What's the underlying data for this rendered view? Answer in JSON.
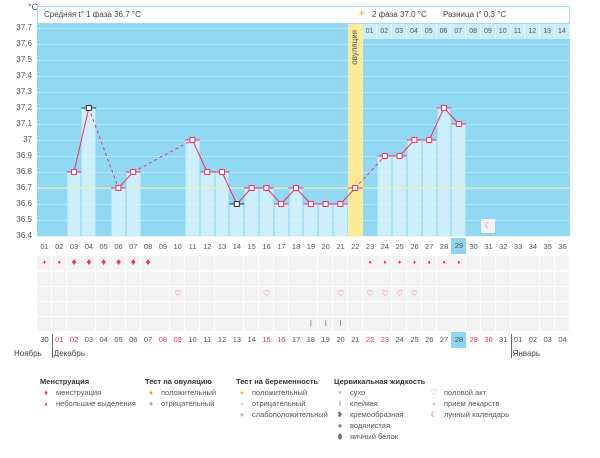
{
  "header": {
    "unit": "°C",
    "phase1": "Средняя t° 1 фаза 36.7 °C",
    "phase2": "2 фаза 37.0 °C",
    "diff": "Разница t° 0.3 °C",
    "ovulation_label": "овуляция",
    "luteal_days": [
      "01",
      "02",
      "03",
      "04",
      "05",
      "06",
      "07",
      "08",
      "09",
      "10",
      "11",
      "12",
      "13",
      "14"
    ]
  },
  "colors": {
    "plot_bg": "#91d8f3",
    "bar": "#cdeefb",
    "line": "#f0306a",
    "ovulation": "#fbeb98",
    "coverline": "#f4f0a0"
  },
  "chart_data": {
    "type": "line",
    "ylabel": "°C",
    "ylim": [
      36.4,
      37.7
    ],
    "yticks": [
      "37.7",
      "37.6",
      "37.5",
      "37.4",
      "37.3",
      "37.2",
      "37.1",
      "37",
      "36.9",
      "36.8",
      "36.7",
      "36.6",
      "36.5",
      "36.4"
    ],
    "coverline": 36.7,
    "ovulation_day": 22,
    "cycle_days": [
      "01",
      "02",
      "03",
      "04",
      "05",
      "06",
      "07",
      "08",
      "09",
      "10",
      "11",
      "12",
      "13",
      "14",
      "15",
      "16",
      "17",
      "18",
      "19",
      "20",
      "21",
      "22",
      "23",
      "24",
      "25",
      "26",
      "27",
      "28",
      "29",
      "30",
      "31",
      "32",
      "33",
      "34",
      "35",
      "36"
    ],
    "temps": [
      null,
      null,
      36.8,
      37.2,
      null,
      36.7,
      36.8,
      null,
      null,
      null,
      37.0,
      36.8,
      36.8,
      36.6,
      36.7,
      36.7,
      36.6,
      36.7,
      36.6,
      36.6,
      36.6,
      36.7,
      null,
      36.9,
      36.9,
      37.0,
      37.0,
      37.2,
      37.1,
      null,
      null,
      null,
      null,
      null,
      null,
      null
    ],
    "excluded_days": [
      4,
      14
    ],
    "current_cycle_day": 29
  },
  "rows": {
    "menstruation_big": [
      3,
      4,
      5,
      6,
      7,
      8
    ],
    "menstruation_small": [
      1,
      2,
      23,
      24,
      25,
      26,
      27,
      28,
      29
    ],
    "intercourse": [
      10,
      16,
      21,
      23,
      24,
      25,
      26
    ],
    "cervical_sticky": [
      19,
      20,
      21
    ],
    "moon": [
      31
    ]
  },
  "dates": [
    "30",
    "01",
    "02",
    "03",
    "04",
    "05",
    "06",
    "07",
    "08",
    "09",
    "10",
    "11",
    "12",
    "13",
    "14",
    "15",
    "16",
    "17",
    "18",
    "19",
    "20",
    "21",
    "22",
    "23",
    "24",
    "25",
    "26",
    "27",
    "28",
    "29",
    "30",
    "31",
    "01",
    "02",
    "03",
    "04"
  ],
  "weekend_idx": [
    1,
    2,
    8,
    9,
    15,
    16,
    22,
    23,
    29,
    30
  ],
  "today_idx": 28,
  "months": [
    "Ноябрь",
    "Декабрь",
    "Январь"
  ],
  "legend": {
    "menstruation": {
      "title": "Менструация",
      "items": [
        "менструация",
        "небольшие выделения"
      ]
    },
    "ovulation_test": {
      "title": "Тест на овуляцию",
      "items": [
        "положительный",
        "отрицательный"
      ]
    },
    "pregnancy_test": {
      "title": "Тест на беременность",
      "items": [
        "положительный",
        "отрицательный",
        "слабоположительный"
      ]
    },
    "cervical": {
      "title": "Цервикальная жидкость",
      "items": [
        "сухо",
        "клейкая",
        "кремообразная",
        "водянистая",
        "яичный белок"
      ]
    },
    "other": {
      "items": [
        "половой акт",
        "прием лекарств",
        "лунный календарь"
      ]
    }
  }
}
